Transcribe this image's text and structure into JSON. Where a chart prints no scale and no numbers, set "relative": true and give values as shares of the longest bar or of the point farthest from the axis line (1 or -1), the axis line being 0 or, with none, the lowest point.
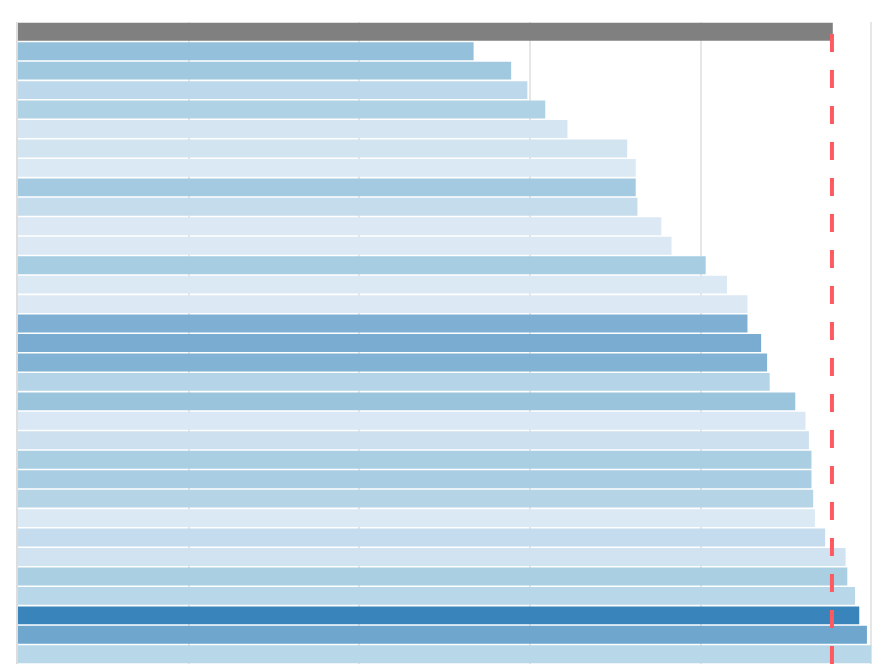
{
  "chart_data": {
    "type": "bar",
    "orientation": "horizontal",
    "relative": true,
    "grid": true,
    "categories": [
      null,
      null,
      null,
      null,
      null,
      null,
      null,
      null,
      null,
      null,
      null,
      null,
      null,
      null,
      null,
      null,
      null,
      null,
      null,
      null,
      null,
      null,
      null,
      null,
      null,
      null,
      null,
      null,
      null,
      null,
      null,
      null,
      null
    ],
    "values": [
      0.955,
      0.534,
      0.578,
      0.597,
      0.618,
      0.644,
      0.714,
      0.724,
      0.724,
      0.726,
      0.754,
      0.766,
      0.806,
      0.831,
      0.855,
      0.855,
      0.871,
      0.878,
      0.881,
      0.911,
      0.923,
      0.927,
      0.93,
      0.93,
      0.932,
      0.934,
      0.946,
      0.97,
      0.972,
      0.981,
      0.986,
      0.995,
      1
    ],
    "colors": [
      "#808080",
      "#94c0dc",
      "#a0c8de",
      "#bdd8ea",
      "#b0d2e5",
      "#d5e5f2",
      "#d3e4f1",
      "#dbe9f4",
      "#a3cae0",
      "#c4dcec",
      "#dce9f4",
      "#dce9f4",
      "#a6cde2",
      "#dbe9f4",
      "#dce9f4",
      "#7fb0d3",
      "#7aacd1",
      "#82b3d4",
      "#b5d4e7",
      "#9ac3dc",
      "#dae7f5",
      "#cde0ef",
      "#aacfe3",
      "#a9cde3",
      "#b5d4e6",
      "#dbe9f4",
      "#c4dced",
      "#d1e3f1",
      "#aacfe3",
      "#b8d7e8",
      "#3a84bc",
      "#6ea6cd",
      "#b8d7e8"
    ],
    "ref_lines": [
      {
        "axis": "x",
        "value": 0.954,
        "color": "#ff5a5f",
        "line_style": "dashed"
      }
    ]
  }
}
